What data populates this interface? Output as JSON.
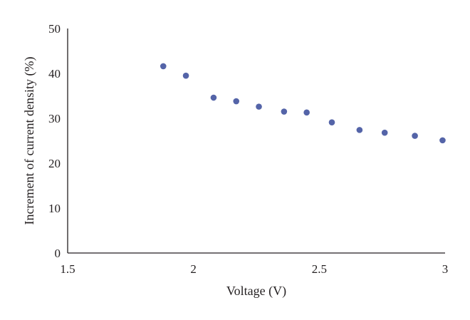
{
  "chart_data": {
    "type": "scatter",
    "title": "",
    "xlabel": "Voltage (V)",
    "ylabel": "Increment of current density (%)",
    "xlim": [
      1.5,
      3
    ],
    "ylim": [
      0,
      50
    ],
    "x_ticks": [
      "1.5",
      "2",
      "2.5",
      "3"
    ],
    "y_ticks": [
      "0",
      "10",
      "20",
      "30",
      "40",
      "50"
    ],
    "grid": false,
    "legend": "none",
    "series": [
      {
        "color": "#5464a8",
        "points": [
          {
            "x": 1.88,
            "y": 41.6
          },
          {
            "x": 1.97,
            "y": 39.5
          },
          {
            "x": 2.08,
            "y": 34.6
          },
          {
            "x": 2.17,
            "y": 33.8
          },
          {
            "x": 2.26,
            "y": 32.6
          },
          {
            "x": 2.36,
            "y": 31.5
          },
          {
            "x": 2.45,
            "y": 31.3
          },
          {
            "x": 2.55,
            "y": 29.1
          },
          {
            "x": 2.66,
            "y": 27.4
          },
          {
            "x": 2.76,
            "y": 26.8
          },
          {
            "x": 2.88,
            "y": 26.1
          },
          {
            "x": 2.99,
            "y": 25.1
          }
        ]
      }
    ]
  }
}
